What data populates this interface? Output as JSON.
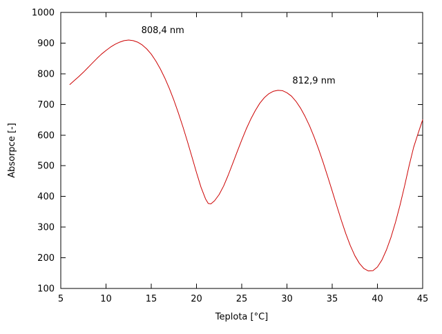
{
  "chart_data": {
    "type": "line",
    "title": "",
    "xlabel": "Teplota [°C]",
    "ylabel": "Absorpce [-]",
    "xlim": [
      5,
      45
    ],
    "ylim": [
      100,
      1000
    ],
    "xticks": [
      5,
      10,
      15,
      20,
      25,
      30,
      35,
      40,
      45
    ],
    "yticks": [
      100,
      200,
      300,
      400,
      500,
      600,
      700,
      800,
      900,
      1000
    ],
    "grid": false,
    "legend": "none",
    "line_color": "#cc0000",
    "axis_color": "#000000",
    "annotations": [
      {
        "x": 13.9,
        "y": 933,
        "text": "808,4 nm"
      },
      {
        "x": 30.6,
        "y": 768,
        "text": "812,9 nm"
      }
    ],
    "series": [
      {
        "name": "absorpce",
        "color": "#cc0000",
        "points": [
          [
            6.0,
            765
          ],
          [
            6.5,
            778
          ],
          [
            7.0,
            791
          ],
          [
            7.5,
            805
          ],
          [
            8.0,
            820
          ],
          [
            8.5,
            835
          ],
          [
            9.0,
            850
          ],
          [
            9.5,
            864
          ],
          [
            10.0,
            876
          ],
          [
            10.5,
            887
          ],
          [
            11.0,
            896
          ],
          [
            11.5,
            903
          ],
          [
            12.0,
            908
          ],
          [
            12.5,
            910
          ],
          [
            13.0,
            908
          ],
          [
            13.5,
            903
          ],
          [
            14.0,
            894
          ],
          [
            14.5,
            881
          ],
          [
            15.0,
            864
          ],
          [
            15.5,
            842
          ],
          [
            16.0,
            816
          ],
          [
            16.5,
            786
          ],
          [
            17.0,
            752
          ],
          [
            17.5,
            714
          ],
          [
            18.0,
            672
          ],
          [
            18.5,
            627
          ],
          [
            19.0,
            579
          ],
          [
            19.5,
            529
          ],
          [
            20.0,
            478
          ],
          [
            20.5,
            430
          ],
          [
            21.0,
            392
          ],
          [
            21.3,
            377
          ],
          [
            21.6,
            376
          ],
          [
            22.0,
            386
          ],
          [
            22.5,
            406
          ],
          [
            23.0,
            434
          ],
          [
            23.5,
            469
          ],
          [
            24.0,
            507
          ],
          [
            24.5,
            546
          ],
          [
            25.0,
            584
          ],
          [
            25.5,
            620
          ],
          [
            26.0,
            652
          ],
          [
            26.5,
            680
          ],
          [
            27.0,
            704
          ],
          [
            27.5,
            722
          ],
          [
            28.0,
            735
          ],
          [
            28.5,
            743
          ],
          [
            29.0,
            746
          ],
          [
            29.5,
            745
          ],
          [
            30.0,
            738
          ],
          [
            30.5,
            727
          ],
          [
            31.0,
            710
          ],
          [
            31.5,
            688
          ],
          [
            32.0,
            661
          ],
          [
            32.5,
            630
          ],
          [
            33.0,
            594
          ],
          [
            33.5,
            554
          ],
          [
            34.0,
            511
          ],
          [
            34.5,
            465
          ],
          [
            35.0,
            418
          ],
          [
            35.5,
            370
          ],
          [
            36.0,
            323
          ],
          [
            36.5,
            279
          ],
          [
            37.0,
            240
          ],
          [
            37.5,
            207
          ],
          [
            38.0,
            182
          ],
          [
            38.5,
            165
          ],
          [
            39.0,
            157
          ],
          [
            39.5,
            158
          ],
          [
            40.0,
            170
          ],
          [
            40.5,
            193
          ],
          [
            41.0,
            226
          ],
          [
            41.5,
            267
          ],
          [
            42.0,
            316
          ],
          [
            42.5,
            372
          ],
          [
            43.0,
            434
          ],
          [
            43.5,
            500
          ],
          [
            44.0,
            560
          ],
          [
            44.5,
            606
          ],
          [
            45.0,
            650
          ]
        ]
      }
    ]
  }
}
